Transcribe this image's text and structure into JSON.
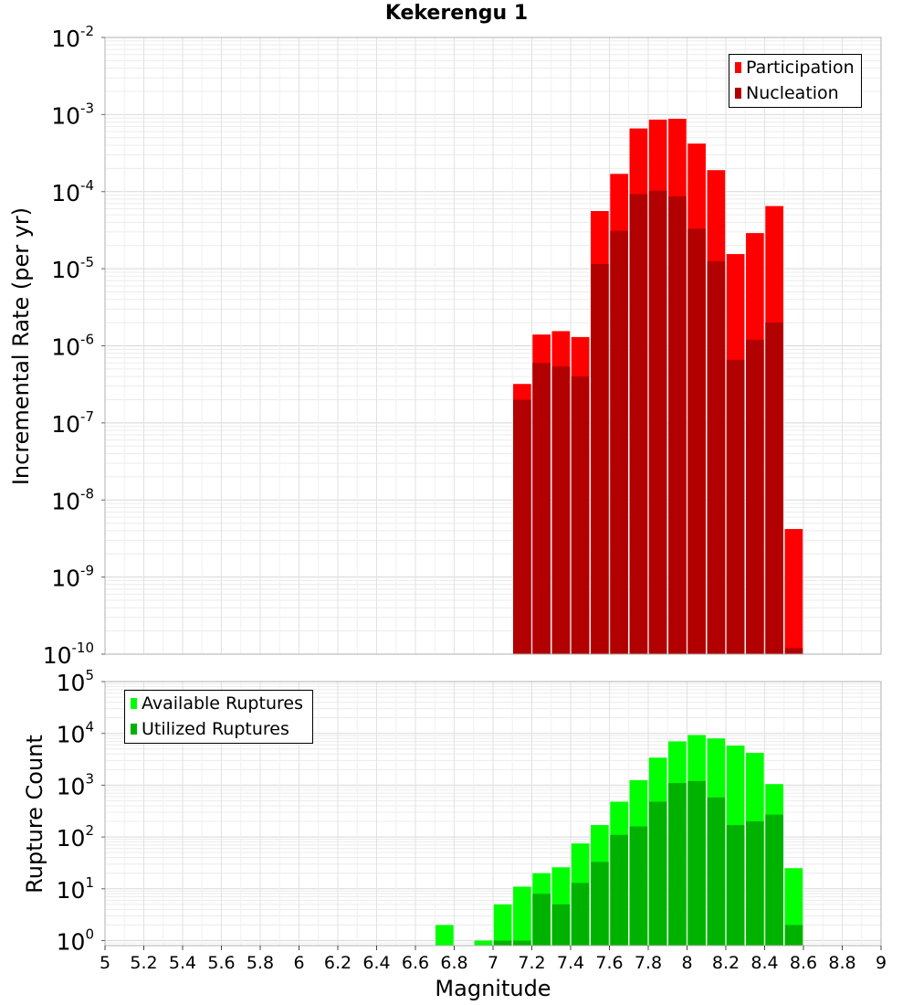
{
  "chart_data": [
    {
      "type": "bar",
      "title": "Kekerengu 1",
      "xlabel": "",
      "ylabel": "Incremental Rate (per yr)",
      "scale": "log",
      "ylim": [
        1e-10,
        0.01
      ],
      "xlim": [
        5,
        9
      ],
      "grid": true,
      "legend_placement": "top-right",
      "x": [
        7.15,
        7.25,
        7.35,
        7.45,
        7.55,
        7.65,
        7.75,
        7.85,
        7.95,
        8.05,
        8.15,
        8.25,
        8.35,
        8.45,
        8.55
      ],
      "series": [
        {
          "name": "Participation",
          "color": "#ff0000",
          "values": [
            3.2e-07,
            1.4e-06,
            1.55e-06,
            1.3e-06,
            5.6e-05,
            0.00017,
            0.00066,
            0.00086,
            0.00088,
            0.00042,
            0.00019,
            1.55e-05,
            2.9e-05,
            6.5e-05,
            4.2e-09
          ]
        },
        {
          "name": "Nucleation",
          "color": "#b20000",
          "values": [
            2e-07,
            6e-07,
            5.4e-07,
            4e-07,
            1.15e-05,
            3.1e-05,
            9.3e-05,
            0.000103,
            8.7e-05,
            3.3e-05,
            1.25e-05,
            6.6e-07,
            1.2e-06,
            2e-06,
            1.2e-10
          ]
        }
      ]
    },
    {
      "type": "bar",
      "title": "",
      "xlabel": "Magnitude",
      "ylabel": "Rupture Count",
      "scale": "log",
      "ylim": [
        0.8,
        100000.0
      ],
      "xlim": [
        5,
        9
      ],
      "grid": true,
      "legend_placement": "top-left",
      "x_ticks": [
        "5",
        "5.2",
        "5.4",
        "5.6",
        "5.8",
        "6",
        "6.2",
        "6.4",
        "6.6",
        "6.8",
        "7",
        "7.2",
        "7.4",
        "7.6",
        "7.8",
        "8",
        "8.2",
        "8.4",
        "8.6",
        "8.8",
        "9"
      ],
      "x": [
        6.75,
        6.95,
        7.05,
        7.15,
        7.25,
        7.35,
        7.45,
        7.55,
        7.65,
        7.75,
        7.85,
        7.95,
        8.05,
        8.15,
        8.25,
        8.35,
        8.45,
        8.55
      ],
      "series": [
        {
          "name": "Available Ruptures",
          "color": "#00ff00",
          "values": [
            2,
            1,
            5,
            11,
            20,
            26,
            75,
            170,
            480,
            1250,
            3400,
            7000,
            9300,
            8000,
            5800,
            4200,
            1050,
            25
          ]
        },
        {
          "name": "Utilized Ruptures",
          "color": "#00b200",
          "values": [
            0,
            0,
            1,
            1,
            8,
            5,
            13,
            33,
            110,
            160,
            480,
            1100,
            1200,
            580,
            170,
            200,
            270,
            2
          ]
        }
      ]
    }
  ]
}
